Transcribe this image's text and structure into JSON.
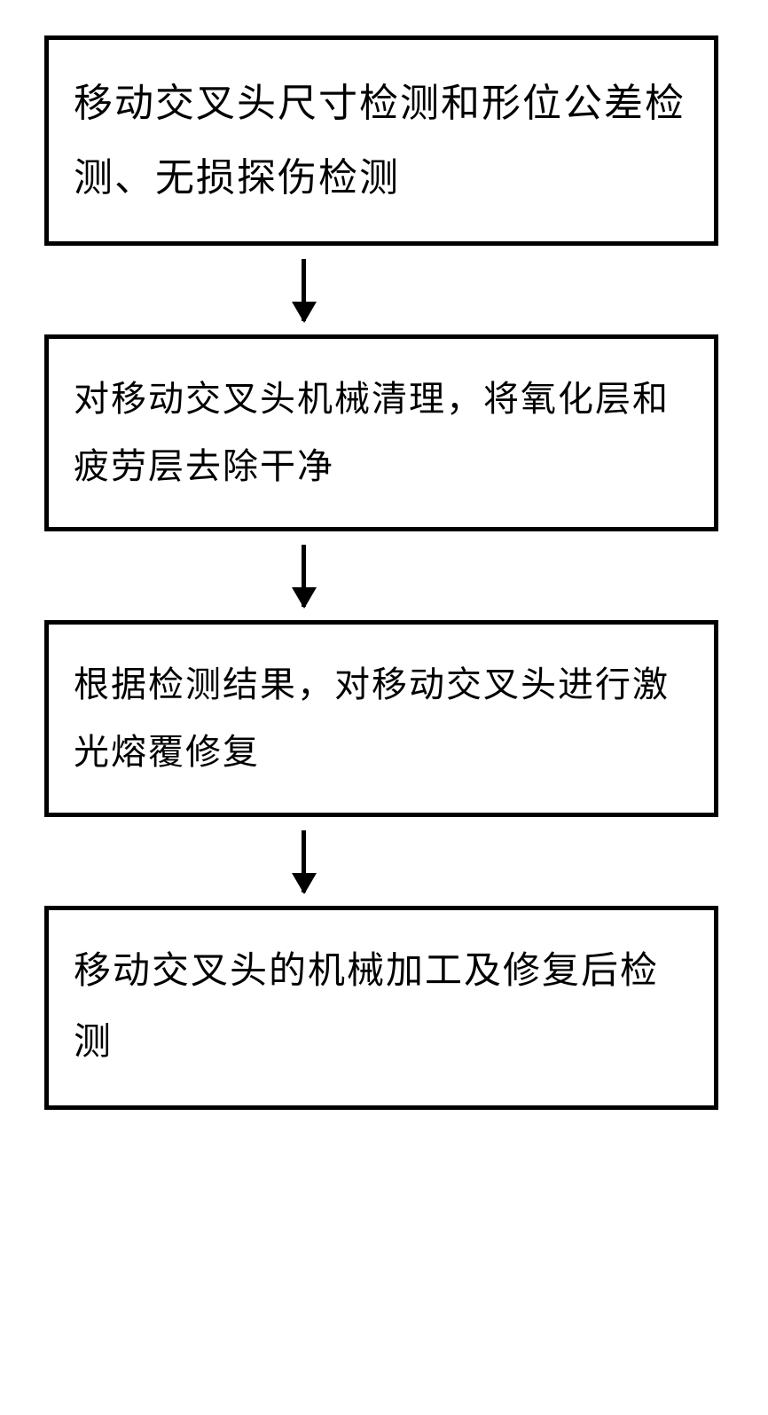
{
  "flowchart": {
    "type": "flowchart",
    "background_color": "#ffffff",
    "box_border_color": "#000000",
    "box_border_width": 5,
    "text_color": "#000000",
    "font_size_pt": 38,
    "font_family": "SimSun",
    "line_height": 1.9,
    "arrow_color": "#000000",
    "arrow_width": 5,
    "arrow_height": 70,
    "arrowhead_width": 28,
    "arrowhead_height": 24,
    "nodes": [
      {
        "id": "step1",
        "text": "移动交叉头尺寸检测和形位公差检测、无损探伤检测",
        "font_size": 44
      },
      {
        "id": "step2",
        "text": "对移动交叉头机械清理，将氧化层和疲劳层去除干净",
        "font_size": 40
      },
      {
        "id": "step3",
        "text": "根据检测结果，对移动交叉头进行激光熔覆修复",
        "font_size": 40
      },
      {
        "id": "step4",
        "text": "移动交叉头的机械加工及修复后检测",
        "font_size": 42
      }
    ],
    "edges": [
      {
        "from": "step1",
        "to": "step2"
      },
      {
        "from": "step2",
        "to": "step3"
      },
      {
        "from": "step3",
        "to": "step4"
      }
    ]
  }
}
